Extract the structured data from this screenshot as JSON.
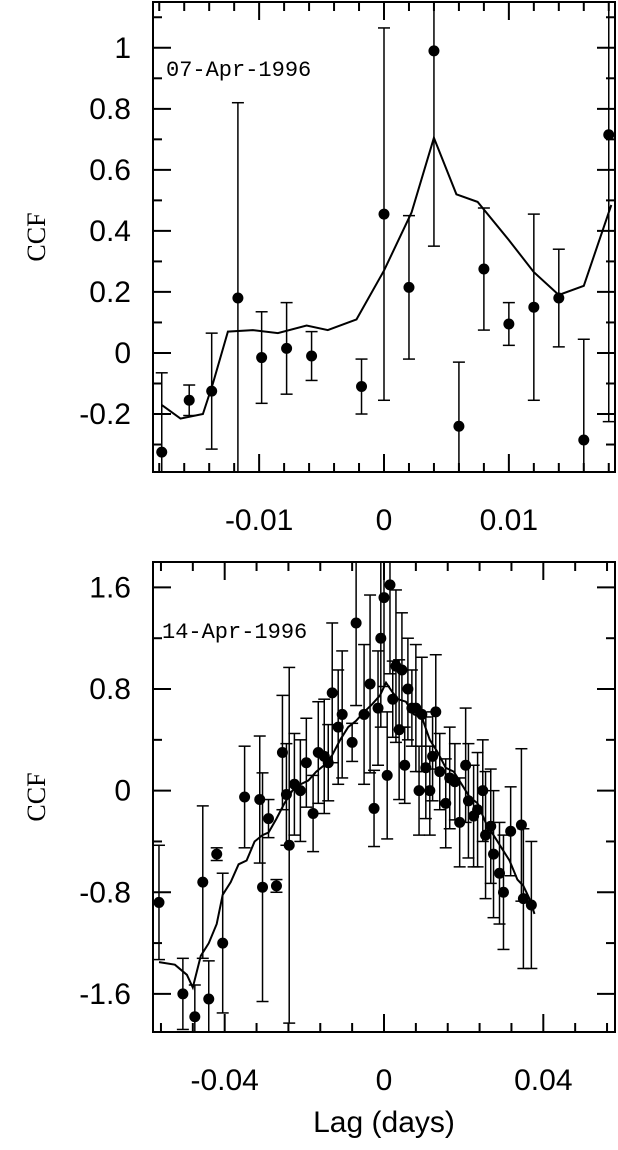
{
  "chart_data": [
    {
      "type": "scatter",
      "annotation": "07-Apr-1996",
      "ylabel": "CCF",
      "xlabel": "",
      "xlim": [
        -0.0185,
        0.0185
      ],
      "ylim": [
        -0.39,
        1.15
      ],
      "x_ticks": [
        -0.01,
        0,
        0.01
      ],
      "x_tick_labels": [
        "-0.01",
        "0",
        "0.01"
      ],
      "y_ticks": [
        -0.2,
        0,
        0.2,
        0.4,
        0.6,
        0.8,
        1
      ],
      "y_tick_labels": [
        "-0.2",
        "0",
        "0.2",
        "0.4",
        "0.6",
        "0.8",
        "1"
      ],
      "points": [
        {
          "x": -0.0178,
          "y": -0.325,
          "err": 0.26
        },
        {
          "x": -0.0156,
          "y": -0.155,
          "err": 0.05
        },
        {
          "x": -0.0138,
          "y": -0.125,
          "err": 0.19
        },
        {
          "x": -0.0117,
          "y": 0.18,
          "err": 0.64
        },
        {
          "x": -0.0098,
          "y": -0.015,
          "err": 0.15
        },
        {
          "x": -0.0078,
          "y": 0.015,
          "err": 0.15
        },
        {
          "x": -0.0058,
          "y": -0.01,
          "err": 0.08
        },
        {
          "x": -0.0018,
          "y": -0.11,
          "err": 0.09
        },
        {
          "x": 0.0,
          "y": 0.455,
          "err": 0.61
        },
        {
          "x": 0.002,
          "y": 0.215,
          "err": 0.235
        },
        {
          "x": 0.004,
          "y": 0.99,
          "err": 0.64
        },
        {
          "x": 0.006,
          "y": -0.24,
          "err": 0.21
        },
        {
          "x": 0.008,
          "y": 0.275,
          "err": 0.2
        },
        {
          "x": 0.01,
          "y": 0.095,
          "err": 0.07
        },
        {
          "x": 0.012,
          "y": 0.15,
          "err": 0.305
        },
        {
          "x": 0.014,
          "y": 0.18,
          "err": 0.16
        },
        {
          "x": 0.016,
          "y": -0.285,
          "err": 0.33
        },
        {
          "x": 0.018,
          "y": 0.715,
          "err": 0.94
        }
      ],
      "line": [
        [
          -0.0178,
          -0.17
        ],
        [
          -0.0163,
          -0.215
        ],
        [
          -0.0145,
          -0.2
        ],
        [
          -0.0137,
          -0.1
        ],
        [
          -0.0125,
          0.07
        ],
        [
          -0.0105,
          0.075
        ],
        [
          -0.0085,
          0.065
        ],
        [
          -0.0062,
          0.09
        ],
        [
          -0.0045,
          0.075
        ],
        [
          -0.0022,
          0.11
        ],
        [
          0.0,
          0.27
        ],
        [
          0.0022,
          0.46
        ],
        [
          0.004,
          0.705
        ],
        [
          0.0058,
          0.52
        ],
        [
          0.0075,
          0.495
        ],
        [
          0.01,
          0.37
        ],
        [
          0.012,
          0.265
        ],
        [
          0.014,
          0.19
        ],
        [
          0.016,
          0.22
        ],
        [
          0.0182,
          0.485
        ]
      ]
    },
    {
      "type": "scatter",
      "annotation": "14-Apr-1996",
      "ylabel": "CCF",
      "xlabel": "Lag (days)",
      "xlim": [
        -0.058,
        0.058
      ],
      "ylim": [
        -1.9,
        1.8
      ],
      "x_ticks": [
        -0.04,
        0,
        0.04
      ],
      "x_tick_labels": [
        "-0.04",
        "0",
        "0.04"
      ],
      "y_ticks": [
        -1.6,
        -0.8,
        0,
        0.8,
        1.6
      ],
      "y_tick_labels": [
        "-1.6",
        "-0.8",
        "0",
        "0.8",
        "1.6"
      ],
      "points": [
        {
          "x": -0.0565,
          "y": -0.88,
          "err": 0.45
        },
        {
          "x": -0.0505,
          "y": -1.6,
          "err": 0.28
        },
        {
          "x": -0.0475,
          "y": -1.78,
          "err": 0.25
        },
        {
          "x": -0.0455,
          "y": -0.72,
          "err": 0.6
        },
        {
          "x": -0.044,
          "y": -1.64,
          "err": 0.3
        },
        {
          "x": -0.042,
          "y": -0.5,
          "err": 0.05
        },
        {
          "x": -0.0405,
          "y": -1.2,
          "err": 0.55
        },
        {
          "x": -0.035,
          "y": -0.05,
          "err": 0.4
        },
        {
          "x": -0.0312,
          "y": -0.07,
          "err": 0.5
        },
        {
          "x": -0.0305,
          "y": -0.76,
          "err": 0.9
        },
        {
          "x": -0.029,
          "y": -0.22,
          "err": 0.15
        },
        {
          "x": -0.027,
          "y": -0.75,
          "err": 0.05
        },
        {
          "x": -0.0255,
          "y": 0.3,
          "err": 0.45
        },
        {
          "x": -0.0245,
          "y": -0.03,
          "err": 0.4
        },
        {
          "x": -0.0238,
          "y": -0.43,
          "err": 1.4
        },
        {
          "x": -0.0225,
          "y": 0.05,
          "err": 0.4
        },
        {
          "x": -0.021,
          "y": 0.0,
          "err": 0.4
        },
        {
          "x": -0.0195,
          "y": 0.22,
          "err": 0.35
        },
        {
          "x": -0.0178,
          "y": -0.18,
          "err": 0.3
        },
        {
          "x": -0.0165,
          "y": 0.3,
          "err": 0.4
        },
        {
          "x": -0.015,
          "y": 0.27,
          "err": 0.45
        },
        {
          "x": -0.014,
          "y": 0.22,
          "err": 0.3
        },
        {
          "x": -0.013,
          "y": 0.77,
          "err": 0.55
        },
        {
          "x": -0.0115,
          "y": 0.5,
          "err": 0.45
        },
        {
          "x": -0.0105,
          "y": 0.6,
          "err": 0.5
        },
        {
          "x": -0.008,
          "y": 0.38,
          "err": 0.15
        },
        {
          "x": -0.007,
          "y": 1.32,
          "err": 0.65
        },
        {
          "x": -0.005,
          "y": 0.6,
          "err": 0.55
        },
        {
          "x": -0.0035,
          "y": 0.84,
          "err": 0.7
        },
        {
          "x": -0.0025,
          "y": -0.14,
          "err": 0.3
        },
        {
          "x": -0.0015,
          "y": 0.65,
          "err": 0.45
        },
        {
          "x": -0.0008,
          "y": 1.2,
          "err": 0.7
        },
        {
          "x": 0.0,
          "y": 1.52,
          "err": 0.7
        },
        {
          "x": 0.0008,
          "y": 0.12,
          "err": 0.5
        },
        {
          "x": 0.0015,
          "y": 1.62,
          "err": 0.7
        },
        {
          "x": 0.0022,
          "y": 0.72,
          "err": 0.3
        },
        {
          "x": 0.003,
          "y": 0.98,
          "err": 0.6
        },
        {
          "x": 0.0038,
          "y": 0.48,
          "err": 0.55
        },
        {
          "x": 0.0045,
          "y": 0.95,
          "err": 0.45
        },
        {
          "x": 0.0052,
          "y": 0.2,
          "err": 0.3
        },
        {
          "x": 0.006,
          "y": 0.8,
          "err": 0.4
        },
        {
          "x": 0.007,
          "y": 0.65,
          "err": 0.3
        },
        {
          "x": 0.008,
          "y": 0.65,
          "err": 0.5
        },
        {
          "x": 0.0088,
          "y": 0.0,
          "err": 0.35
        },
        {
          "x": 0.0095,
          "y": 0.6,
          "err": 0.45
        },
        {
          "x": 0.0105,
          "y": 0.18,
          "err": 0.4
        },
        {
          "x": 0.0115,
          "y": 0.0,
          "err": 0.35
        },
        {
          "x": 0.0122,
          "y": 0.27,
          "err": 0.35
        },
        {
          "x": 0.013,
          "y": 0.62,
          "err": 0.45
        },
        {
          "x": 0.014,
          "y": 0.15,
          "err": 0.3
        },
        {
          "x": 0.0155,
          "y": -0.1,
          "err": 0.35
        },
        {
          "x": 0.0165,
          "y": 0.1,
          "err": 0.4
        },
        {
          "x": 0.0178,
          "y": 0.07,
          "err": 0.3
        },
        {
          "x": 0.019,
          "y": -0.25,
          "err": 0.35
        },
        {
          "x": 0.0205,
          "y": 0.2,
          "err": 0.45
        },
        {
          "x": 0.0212,
          "y": -0.08,
          "err": 0.45
        },
        {
          "x": 0.0225,
          "y": -0.2,
          "err": 0.4
        },
        {
          "x": 0.0235,
          "y": -0.15,
          "err": 0.45
        },
        {
          "x": 0.0248,
          "y": 0.0,
          "err": 0.4
        },
        {
          "x": 0.0255,
          "y": -0.35,
          "err": 0.5
        },
        {
          "x": 0.0268,
          "y": -0.28,
          "err": 0.45
        },
        {
          "x": 0.0275,
          "y": -0.5,
          "err": 0.5
        },
        {
          "x": 0.029,
          "y": -0.65,
          "err": 0.4
        },
        {
          "x": 0.03,
          "y": -0.8,
          "err": 0.45
        },
        {
          "x": 0.0318,
          "y": -0.32,
          "err": 0.35
        },
        {
          "x": 0.0345,
          "y": -0.27,
          "err": 0.6
        },
        {
          "x": 0.035,
          "y": -0.85,
          "err": 0.55
        },
        {
          "x": 0.037,
          "y": -0.9,
          "err": 0.5
        }
      ],
      "line": [
        [
          -0.0565,
          -1.35
        ],
        [
          -0.0525,
          -1.37
        ],
        [
          -0.0495,
          -1.45
        ],
        [
          -0.048,
          -1.55
        ],
        [
          -0.046,
          -1.3
        ],
        [
          -0.044,
          -1.2
        ],
        [
          -0.042,
          -1.05
        ],
        [
          -0.0405,
          -0.82
        ],
        [
          -0.0385,
          -0.72
        ],
        [
          -0.0365,
          -0.58
        ],
        [
          -0.0345,
          -0.55
        ],
        [
          -0.0325,
          -0.4
        ],
        [
          -0.0305,
          -0.35
        ],
        [
          -0.029,
          -0.33
        ],
        [
          -0.027,
          -0.22
        ],
        [
          -0.025,
          -0.1
        ],
        [
          -0.023,
          0.0
        ],
        [
          -0.021,
          0.05
        ],
        [
          -0.019,
          0.08
        ],
        [
          -0.017,
          0.15
        ],
        [
          -0.015,
          0.2
        ],
        [
          -0.013,
          0.28
        ],
        [
          -0.011,
          0.4
        ],
        [
          -0.009,
          0.5
        ],
        [
          -0.007,
          0.55
        ],
        [
          -0.005,
          0.62
        ],
        [
          -0.003,
          0.68
        ],
        [
          -0.001,
          0.75
        ],
        [
          0.0005,
          0.85
        ],
        [
          0.002,
          0.78
        ],
        [
          0.0035,
          0.72
        ],
        [
          0.0055,
          0.7
        ],
        [
          0.0075,
          0.6
        ],
        [
          0.0095,
          0.58
        ],
        [
          0.0115,
          0.4
        ],
        [
          0.0135,
          0.3
        ],
        [
          0.0155,
          0.18
        ],
        [
          0.0175,
          0.15
        ],
        [
          0.0195,
          0.05
        ],
        [
          0.0215,
          -0.05
        ],
        [
          0.0235,
          -0.1
        ],
        [
          0.0255,
          -0.25
        ],
        [
          0.0275,
          -0.35
        ],
        [
          0.0295,
          -0.45
        ],
        [
          0.0315,
          -0.55
        ],
        [
          0.0335,
          -0.7
        ],
        [
          0.035,
          -0.75
        ],
        [
          0.0365,
          -0.85
        ],
        [
          0.0378,
          -0.97
        ]
      ]
    }
  ]
}
